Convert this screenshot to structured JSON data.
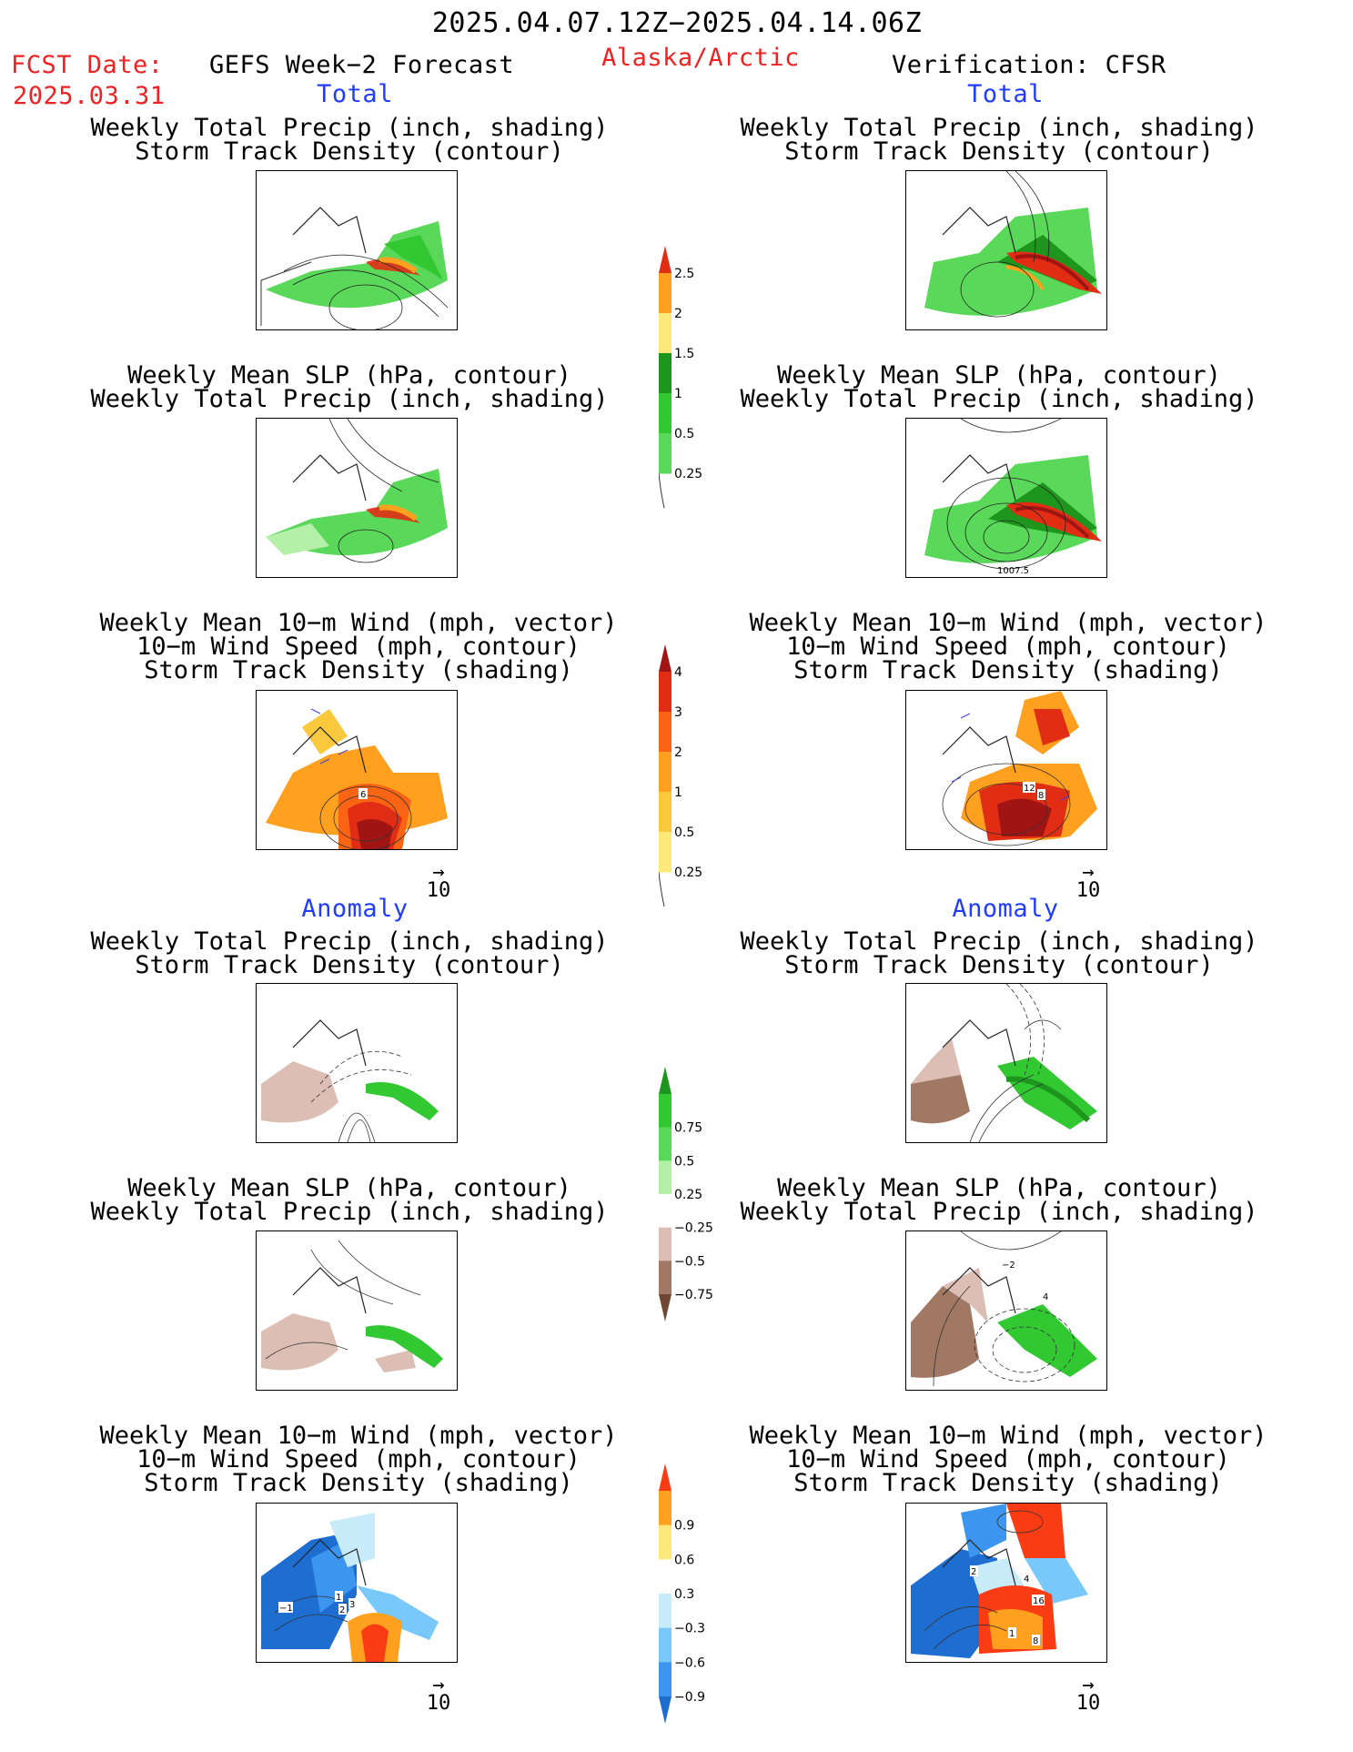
{
  "header": {
    "date_range": "2025.04.07.12Z−2025.04.14.06Z",
    "fcst_label": "FCST Date:",
    "fcst_date": "2025.03.31",
    "forecast_name": "GEFS Week−2 Forecast",
    "region": "Alaska/Arctic",
    "verification": "Verification: CFSR"
  },
  "sections": {
    "total_left": "Total",
    "total_right": "Total",
    "anomaly_left": "Anomaly",
    "anomaly_right": "Anomaly"
  },
  "panel_titles": {
    "precip_track": [
      "Weekly Total Precip (inch, shading)",
      "Storm Track Density (contour)"
    ],
    "slp_precip": [
      "Weekly Mean SLP (hPa, contour)",
      "Weekly Total Precip (inch, shading)"
    ],
    "wind_track": [
      "Weekly Mean 10−m Wind (mph, vector)",
      "10−m Wind Speed (mph, contour)",
      "Storm Track Density (shading)"
    ]
  },
  "vector_reference": {
    "value": "10",
    "arrow": "→"
  },
  "map_labels": {
    "total_right_slp_contour": "1007.5",
    "total_left_wind_contour": "6",
    "total_right_wind_contours": [
      "12",
      "8"
    ],
    "anom_left_wind_contours": [
      "−1",
      "1",
      "2",
      "3"
    ],
    "anom_right_slp_contours": [
      "−2",
      "4"
    ],
    "anom_right_wind_contours": [
      "2",
      "4",
      "16",
      "1",
      "8"
    ]
  },
  "colorbars": [
    {
      "id": "precip_total",
      "colors": [
        "#b4f0a8",
        "#5ad85a",
        "#32c832",
        "#1e961e",
        "#ffe87a",
        "#ffa01e",
        "#e12d14"
      ],
      "labels": [
        "0.25",
        "0.5",
        "1",
        "1.5",
        "2",
        "2.5"
      ]
    },
    {
      "id": "track_total",
      "colors": [
        "#fffac8",
        "#ffe87a",
        "#fac83c",
        "#ffa01e",
        "#fa6414",
        "#e12d14",
        "#a01414"
      ],
      "labels": [
        "0.25",
        "0.5",
        "1",
        "2",
        "3",
        "4"
      ]
    },
    {
      "id": "precip_anom",
      "colors": [
        "#6e4632",
        "#a07864",
        "#dcbeb4",
        "#ffffff",
        "#b4f0a8",
        "#5ad85a",
        "#32c832",
        "#1e961e"
      ],
      "labels": [
        "−0.75",
        "−0.5",
        "−0.25",
        "0.25",
        "0.5",
        "0.75"
      ]
    },
    {
      "id": "track_anom",
      "colors": [
        "#1e6ed2",
        "#3c96f0",
        "#78c8fa",
        "#c8ebfa",
        "#ffffff",
        "#ffe87a",
        "#ffa01e",
        "#fa3c14"
      ],
      "labels": [
        "−0.9",
        "−0.6",
        "−0.3",
        "0.3",
        "0.6",
        "0.9"
      ]
    }
  ]
}
